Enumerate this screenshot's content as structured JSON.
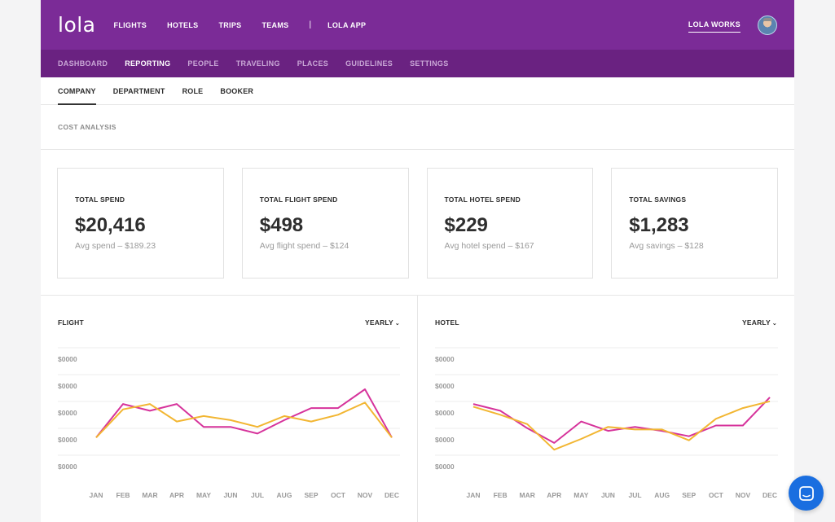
{
  "header": {
    "logo": "lola",
    "nav": [
      "FLIGHTS",
      "HOTELS",
      "TRIPS",
      "TEAMS"
    ],
    "separator": "|",
    "app_link": "LOLA APP",
    "workspace": "LOLA WORKS"
  },
  "subnav": {
    "items": [
      "DASHBOARD",
      "REPORTING",
      "PEOPLE",
      "TRAVELING",
      "PLACES",
      "GUIDELINES",
      "SETTINGS"
    ],
    "active": "REPORTING"
  },
  "tabs": {
    "items": [
      "COMPANY",
      "DEPARTMENT",
      "ROLE",
      "BOOKER"
    ],
    "active": "COMPANY"
  },
  "section_title": "COST ANALYSIS",
  "cards": [
    {
      "label": "TOTAL SPEND",
      "value": "$20,416",
      "sub": "Avg spend – $189.23"
    },
    {
      "label": "TOTAL FLIGHT SPEND",
      "value": "$498",
      "sub": "Avg flight spend – $124"
    },
    {
      "label": "TOTAL HOTEL SPEND",
      "value": "$229",
      "sub": "Avg hotel spend – $167"
    },
    {
      "label": "TOTAL SAVINGS",
      "value": "$1,283",
      "sub": "Avg savings – $128"
    }
  ],
  "colors": {
    "brand": "#7b2b97",
    "brand_dark": "#6a2281",
    "series_magenta": "#d6339b",
    "series_yellow": "#f2b632",
    "chat": "#1a6ee0"
  },
  "chart_data": [
    {
      "type": "line",
      "title": "FLIGHT",
      "period": "YEARLY",
      "y_tick_labels": [
        "$0000",
        "$0000",
        "$0000",
        "$0000",
        "$0000"
      ],
      "categories": [
        "JAN",
        "FEB",
        "MAR",
        "APR",
        "MAY",
        "JUN",
        "JUL",
        "AUG",
        "SEP",
        "OCT",
        "NOV",
        "DEC"
      ],
      "ylim": [
        0,
        4
      ],
      "grid": true,
      "series": [
        {
          "color": "#d6339b",
          "values": [
            1.05,
            2.3,
            2.05,
            2.3,
            1.45,
            1.45,
            1.2,
            1.7,
            2.15,
            2.15,
            2.85,
            1.05
          ]
        },
        {
          "color": "#f2b632",
          "values": [
            1.05,
            2.1,
            2.3,
            1.65,
            1.85,
            1.7,
            1.45,
            1.85,
            1.65,
            1.9,
            2.35,
            1.05
          ]
        }
      ]
    },
    {
      "type": "line",
      "title": "HOTEL",
      "period": "YEARLY",
      "y_tick_labels": [
        "$0000",
        "$0000",
        "$0000",
        "$0000",
        "$0000"
      ],
      "categories": [
        "JAN",
        "FEB",
        "MAR",
        "APR",
        "MAY",
        "JUN",
        "JUL",
        "AUG",
        "SEP",
        "OCT",
        "NOV",
        "DEC"
      ],
      "ylim": [
        0,
        4
      ],
      "grid": true,
      "series": [
        {
          "color": "#d6339b",
          "values": [
            2.3,
            2.05,
            1.4,
            0.85,
            1.65,
            1.3,
            1.45,
            1.3,
            1.1,
            1.5,
            1.5,
            2.55
          ]
        },
        {
          "color": "#f2b632",
          "values": [
            2.2,
            1.9,
            1.55,
            0.6,
            1.0,
            1.45,
            1.35,
            1.35,
            0.95,
            1.75,
            2.15,
            2.4
          ]
        }
      ]
    }
  ]
}
